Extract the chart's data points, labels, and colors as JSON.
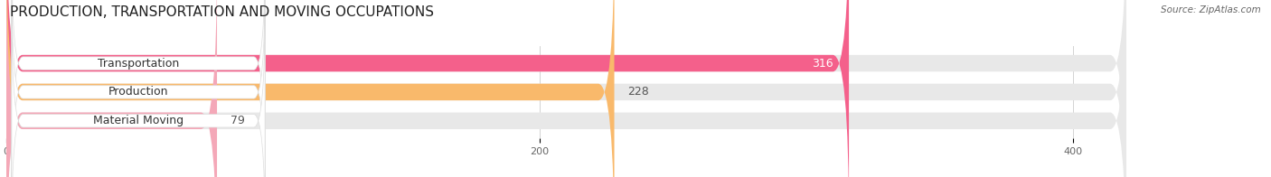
{
  "title": "PRODUCTION, TRANSPORTATION AND MOVING OCCUPATIONS",
  "source": "Source: ZipAtlas.com",
  "categories": [
    "Transportation",
    "Production",
    "Material Moving"
  ],
  "values": [
    316,
    228,
    79
  ],
  "bar_colors": [
    "#f4608b",
    "#f9b96b",
    "#f4a8b8"
  ],
  "bar_bg_color": "#e8e8e8",
  "background_color": "#ffffff",
  "data_max": 420,
  "xlim": [
    0,
    460
  ],
  "xticks": [
    0,
    200,
    400
  ],
  "title_fontsize": 11,
  "label_fontsize": 9,
  "value_fontsize": 9,
  "value_colors": [
    "#ffffff",
    "#555555",
    "#555555"
  ],
  "value_inside": [
    true,
    false,
    false
  ]
}
